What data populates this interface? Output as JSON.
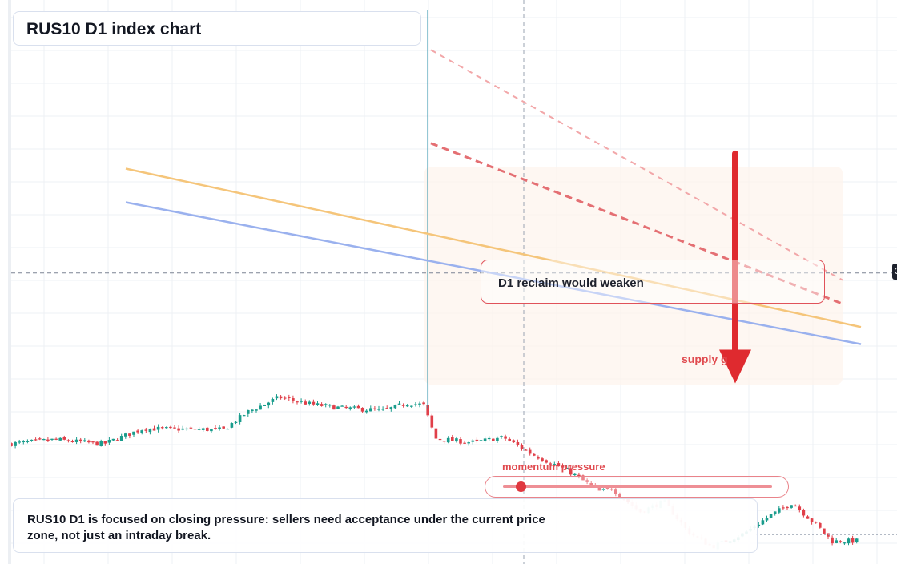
{
  "title": "RUS10 D1 index chart",
  "callout": "D1 reclaim would weaken",
  "supply_label": "supply g",
  "momentum_label": "momentum pressure",
  "note": "RUS10 D1 is focused on closing pressure: sellers need acceptance under the current price zone, not just an intraday break.",
  "colors": {
    "bullish": "#1a9c8c",
    "bearish": "#e0404a",
    "ma_fast": "#f5c57a",
    "ma_slow": "#9ab1ee",
    "arrow": "#df2a2f",
    "callout_border": "#e0525a"
  },
  "momentum_level": 0.04,
  "chart_data": {
    "type": "candlestick",
    "symbol": "RUS10",
    "timeframe": "D1",
    "price_range": [
      0,
      100
    ],
    "grid": true,
    "closes_start": 21.0,
    "closes_end": 3.5,
    "price_path": [
      [
        0,
        21.0
      ],
      [
        60,
        21.8
      ],
      [
        120,
        21.0
      ],
      [
        170,
        23.8
      ],
      [
        270,
        23.6
      ],
      [
        300,
        26.8
      ],
      [
        340,
        29.5
      ],
      [
        380,
        28.2
      ],
      [
        420,
        27.5
      ],
      [
        470,
        27.1
      ],
      [
        500,
        28.4
      ],
      [
        520,
        28.1
      ],
      [
        535,
        22.0
      ],
      [
        580,
        21.3
      ],
      [
        620,
        22.2
      ],
      [
        655,
        19.2
      ],
      [
        700,
        16.2
      ],
      [
        740,
        12.4
      ],
      [
        755,
        13.0
      ],
      [
        790,
        8.7
      ],
      [
        820,
        10.6
      ],
      [
        850,
        5.1
      ],
      [
        880,
        2.4
      ],
      [
        920,
        4.8
      ],
      [
        950,
        7.8
      ],
      [
        980,
        10.4
      ],
      [
        1010,
        6.4
      ],
      [
        1030,
        3.4
      ],
      [
        1070,
        3.5
      ]
    ],
    "moving_averages": [
      {
        "name": "fast",
        "from": 70.9,
        "to": 42.2
      },
      {
        "name": "slow",
        "from": 64.8,
        "to": 39.1
      }
    ],
    "projection_lines": [
      {
        "style": "dashed",
        "from": 75.5,
        "to": 46.3
      },
      {
        "style": "dashed-light",
        "from": 92.4,
        "to": 50.7
      }
    ],
    "current_price_level": 52.0,
    "support_level": 4.6,
    "vertical_marker_index": 520,
    "crosshair_index": 640,
    "arrow": {
      "from": 73.6,
      "to": 32.0
    }
  }
}
